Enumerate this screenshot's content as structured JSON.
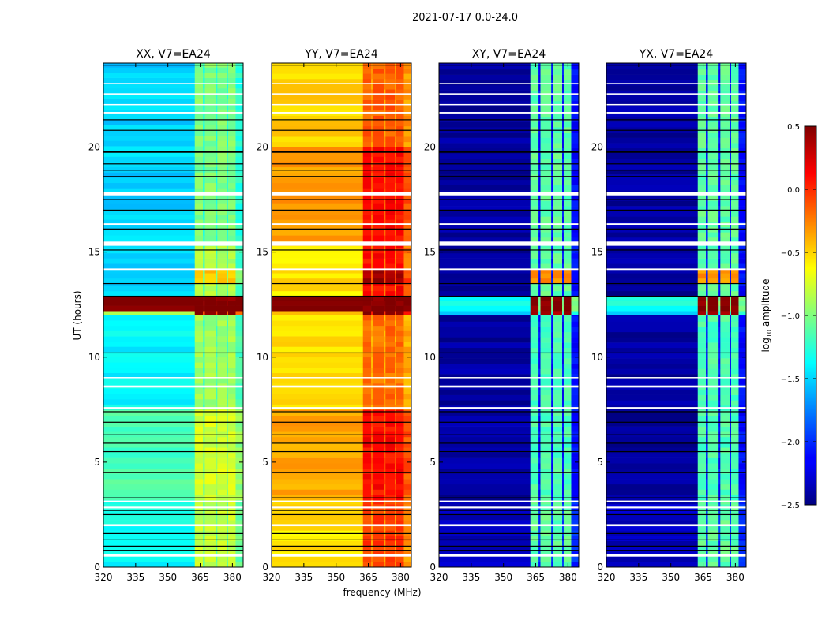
{
  "chart_data": {
    "type": "heatmap",
    "suptitle": "2021-07-17 0.0-24.0",
    "xlabel": "frequency (MHz)",
    "ylabel": "UT (hours)",
    "xlim": [
      320,
      385
    ],
    "ylim": [
      0,
      24
    ],
    "xticks": [
      320,
      335,
      350,
      365,
      380
    ],
    "yticks": [
      0,
      5,
      10,
      15,
      20
    ],
    "colorbar": {
      "label": "log10 amplitude",
      "label_main": "log",
      "label_sub": "10",
      "label_rest": " amplitude",
      "range": [
        -2.5,
        0.5
      ],
      "ticks": [
        "0.5",
        "0.0",
        "−0.5",
        "−1.0",
        "−1.5",
        "−2.0",
        "−2.5"
      ],
      "tick_values": [
        0.5,
        0.0,
        -0.5,
        -1.0,
        -1.5,
        -2.0,
        -2.5
      ],
      "colormap": "jet"
    },
    "high_band_columns_mhz": [
      [
        362.5,
        366.3
      ],
      [
        367.2,
        372.2
      ],
      [
        373.0,
        377.3
      ],
      [
        378.0,
        381.5
      ]
    ],
    "flagged_white_hours": [
      [
        0.5,
        0.62
      ],
      [
        1.95,
        2.05
      ],
      [
        2.8,
        2.88
      ],
      [
        3.1,
        3.17
      ],
      [
        7.55,
        7.62
      ],
      [
        8.55,
        8.65
      ],
      [
        9.0,
        9.05
      ],
      [
        14.15,
        14.22
      ],
      [
        15.3,
        15.5
      ],
      [
        16.3,
        16.37
      ],
      [
        17.7,
        17.85
      ],
      [
        21.6,
        21.67
      ],
      [
        22.0,
        22.05
      ],
      [
        22.5,
        22.56
      ],
      [
        23.0,
        23.05
      ]
    ],
    "black_line_hours": [
      0.8,
      1.0,
      1.3,
      1.6,
      2.5,
      2.7,
      3.3,
      4.5,
      5.5,
      5.9,
      6.3,
      6.9,
      7.4,
      10.2,
      12.9,
      13.5,
      15.1,
      16.1,
      17.0,
      17.5,
      18.6,
      18.9,
      19.2,
      19.8,
      20.8,
      21.3,
      23.9
    ],
    "panels": [
      {
        "title": "XX, V7=EA24",
        "segments": [
          {
            "t": [
              0,
              3.2
            ],
            "low": -1.35,
            "high": -0.8
          },
          {
            "t": [
              3.2,
              7.5
            ],
            "low": -1.15,
            "high": -0.75
          },
          {
            "t": [
              7.5,
              12.0
            ],
            "low": -1.4,
            "high": -0.9
          },
          {
            "t": [
              12.0,
              12.2
            ],
            "low": -0.8,
            "high": 0.5
          },
          {
            "t": [
              12.2,
              12.9
            ],
            "low": 0.5,
            "high": 0.5
          },
          {
            "t": [
              12.9,
              13.5
            ],
            "low": -1.5,
            "high": -0.85
          },
          {
            "t": [
              13.5,
              14.2
            ],
            "low": -1.5,
            "high": -0.45
          },
          {
            "t": [
              14.2,
              15.3
            ],
            "low": -1.5,
            "high": -0.85
          },
          {
            "t": [
              15.3,
              24
            ],
            "low": -1.5,
            "high": -1.0
          }
        ]
      },
      {
        "title": "YY, V7=EA24",
        "segments": [
          {
            "t": [
              0,
              3.2
            ],
            "low": -0.55,
            "high": -0.05
          },
          {
            "t": [
              3.2,
              7.5
            ],
            "low": -0.35,
            "high": 0.1
          },
          {
            "t": [
              7.5,
              12.0
            ],
            "low": -0.55,
            "high": -0.2
          },
          {
            "t": [
              12.0,
              12.2
            ],
            "low": -0.4,
            "high": 0.5
          },
          {
            "t": [
              12.2,
              12.9
            ],
            "low": 0.5,
            "high": 0.5
          },
          {
            "t": [
              12.9,
              13.5
            ],
            "low": -0.55,
            "high": 0.1
          },
          {
            "t": [
              13.5,
              14.2
            ],
            "low": -0.55,
            "high": 0.4
          },
          {
            "t": [
              14.2,
              15.3
            ],
            "low": -0.55,
            "high": 0.1
          },
          {
            "t": [
              15.3,
              20.0
            ],
            "low": -0.35,
            "high": 0.1
          },
          {
            "t": [
              20.0,
              24
            ],
            "low": -0.5,
            "high": -0.15
          }
        ]
      },
      {
        "title": "XY, V7=EA24",
        "segments": [
          {
            "t": [
              0,
              3.2
            ],
            "low": -2.3,
            "high": -1.1
          },
          {
            "t": [
              3.2,
              12.0
            ],
            "low": -2.4,
            "high": -1.15
          },
          {
            "t": [
              12.0,
              12.2
            ],
            "low": -1.6,
            "high": 0.4
          },
          {
            "t": [
              12.2,
              12.9
            ],
            "low": -1.3,
            "high": 0.5
          },
          {
            "t": [
              12.9,
              13.5
            ],
            "low": -2.4,
            "high": -1.1
          },
          {
            "t": [
              13.5,
              14.2
            ],
            "low": -2.4,
            "high": -0.3
          },
          {
            "t": [
              14.2,
              24
            ],
            "low": -2.4,
            "high": -1.1
          }
        ]
      },
      {
        "title": "YX, V7=EA24",
        "segments": [
          {
            "t": [
              0,
              3.2
            ],
            "low": -2.3,
            "high": -1.1
          },
          {
            "t": [
              3.2,
              12.0
            ],
            "low": -2.4,
            "high": -1.15
          },
          {
            "t": [
              12.0,
              12.2
            ],
            "low": -1.6,
            "high": 0.4
          },
          {
            "t": [
              12.2,
              12.9
            ],
            "low": -1.3,
            "high": 0.5
          },
          {
            "t": [
              12.9,
              13.5
            ],
            "low": -2.4,
            "high": -1.1
          },
          {
            "t": [
              13.5,
              14.2
            ],
            "low": -2.4,
            "high": -0.3
          },
          {
            "t": [
              14.2,
              24
            ],
            "low": -2.4,
            "high": -1.1
          }
        ]
      }
    ]
  }
}
